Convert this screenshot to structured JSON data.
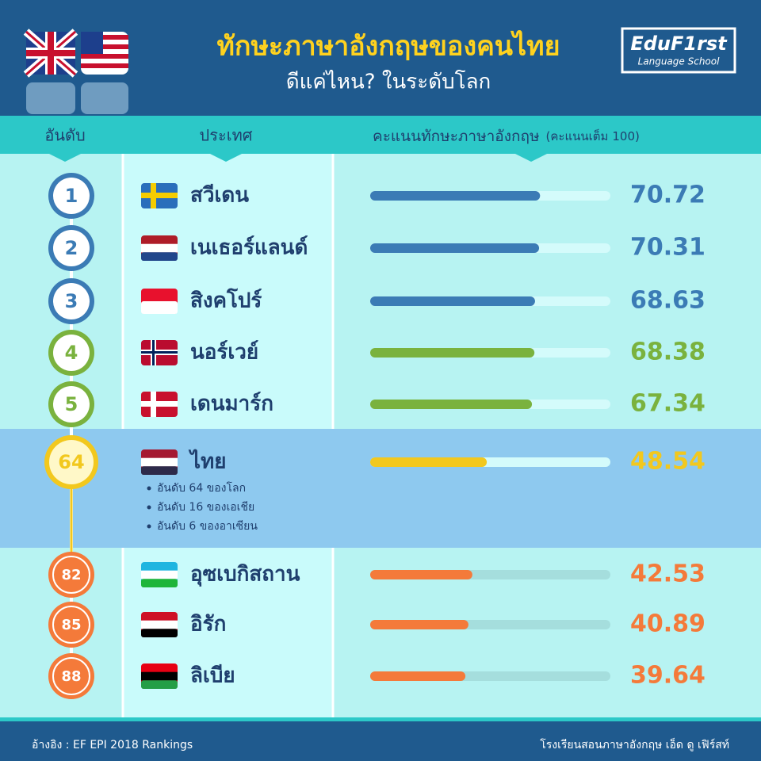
{
  "header": {
    "title": "ทักษะภาษาอังกฤษของคนไทย",
    "subtitle": "ดีแค่ไหน? ในระดับโลก",
    "logo": "EduF1rst",
    "logo_tagline": "Language School"
  },
  "columns": {
    "rank": "อันดับ",
    "country": "ประเทศ",
    "score": "คะแนนทักษะภาษาอังกฤษ",
    "score_note_prefix": "(คะแนนเต็ม",
    "score_max": 100,
    "score_note_suffix": ")"
  },
  "rows": [
    {
      "rank": 1,
      "country": "สวีเดน",
      "score": 70.72,
      "color": "#3b7bb5"
    },
    {
      "rank": 2,
      "country": "เนเธอร์แลนด์",
      "score": 70.31,
      "color": "#3b7bb5"
    },
    {
      "rank": 3,
      "country": "สิงคโปร์",
      "score": 68.63,
      "color": "#3b7bb5"
    },
    {
      "rank": 4,
      "country": "นอร์เวย์",
      "score": 68.38,
      "color": "#7ab23e"
    },
    {
      "rank": 5,
      "country": "เดนมาร์ก",
      "score": 67.34,
      "color": "#7ab23e"
    },
    {
      "rank": 64,
      "country": "ไทย",
      "score": 48.54,
      "color": "#f2c81e",
      "highlight": true
    },
    {
      "rank": 82,
      "country": "อุซเบกิสถาน",
      "score": 42.53,
      "color": "#f47a3a"
    },
    {
      "rank": 85,
      "country": "อิรัก",
      "score": 40.89,
      "color": "#f47a3a"
    },
    {
      "rank": 88,
      "country": "ลิเบีย",
      "score": 39.64,
      "color": "#f47a3a"
    }
  ],
  "highlight_notes": [
    "อันดับ 64 ของโลก",
    "อันดับ 16 ของเอเชีย",
    "อันดับ 6 ของอาเซียน"
  ],
  "footer": {
    "source": "อ้างอิง : EF EPI 2018 Rankings",
    "credit": "โรงเรียนสอนภาษาอังกฤษ เอ็ด ดู เฟิร์สท์"
  }
}
